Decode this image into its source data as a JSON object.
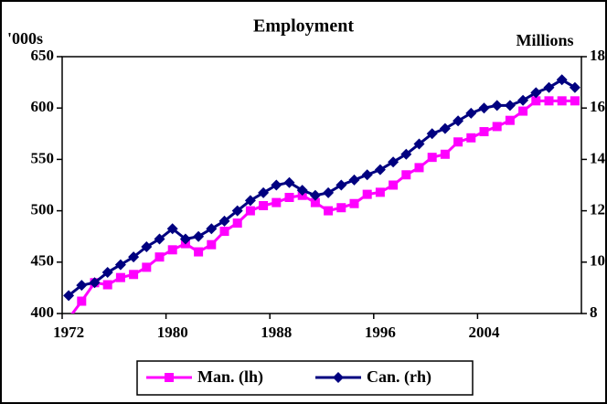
{
  "chart_data": {
    "type": "line",
    "title": "Employment",
    "y_label": "'000s",
    "y2_label": "Millions",
    "categories": [
      "1972",
      null,
      null,
      null,
      null,
      null,
      null,
      null,
      "1980",
      null,
      null,
      null,
      null,
      null,
      null,
      null,
      "1988",
      null,
      null,
      null,
      null,
      null,
      null,
      null,
      "1996",
      null,
      null,
      null,
      null,
      null,
      null,
      null,
      "2004",
      null,
      null,
      null,
      null,
      null,
      null,
      null
    ],
    "series": [
      {
        "name": "Man. (lh)",
        "color": "#ff00ff",
        "marker": "square",
        "values": [
          395,
          412,
          430,
          428,
          435,
          438,
          445,
          455,
          462,
          468,
          460,
          467,
          480,
          488,
          500,
          505,
          508,
          513,
          515,
          508,
          500,
          503,
          507,
          516,
          518,
          525,
          535,
          542,
          552,
          555,
          567,
          571,
          577,
          582,
          588,
          597,
          607,
          607,
          607,
          607
        ]
      },
      {
        "name": "Can. (rh)",
        "color": "#000080",
        "marker": "diamond",
        "axis": "y2",
        "values": [
          8.7,
          9.1,
          9.2,
          9.6,
          9.9,
          10.2,
          10.6,
          10.9,
          11.3,
          10.9,
          11.0,
          11.3,
          11.6,
          12.0,
          12.4,
          12.7,
          13.0,
          13.1,
          12.8,
          12.6,
          12.7,
          13.0,
          13.2,
          13.4,
          13.6,
          13.9,
          14.2,
          14.6,
          15.0,
          15.2,
          15.5,
          15.8,
          16.0,
          16.1,
          16.1,
          16.3,
          16.6,
          16.8,
          17.1,
          16.8
        ]
      }
    ],
    "ylim": [
      400,
      650
    ],
    "yticks": [
      400,
      450,
      500,
      550,
      600,
      650
    ],
    "y2lim": [
      8,
      18
    ],
    "y2ticks": [
      8,
      10,
      12,
      14,
      16,
      18
    ],
    "grid": false,
    "legend": "bottom"
  }
}
